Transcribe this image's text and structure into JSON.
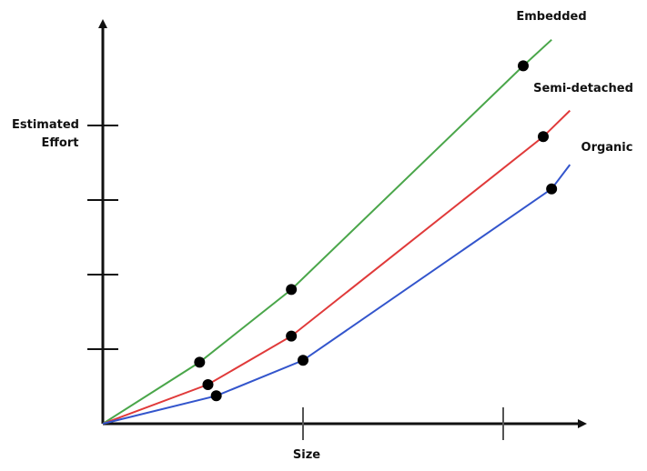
{
  "chart_data": {
    "type": "line",
    "xlabel": "Size",
    "ylabel": "Estimated Effort",
    "xlim": [
      0,
      24
    ],
    "ylim": [
      0,
      20
    ],
    "x_ticks": [
      12,
      24
    ],
    "y_ticks": [
      4,
      8,
      12,
      16
    ],
    "tick_labels_shown": false,
    "grid": false,
    "legend": "inline labels at line ends",
    "series": [
      {
        "name": "Embedded",
        "color": "#4aa64a",
        "points": [
          [
            0,
            0
          ],
          [
            5.8,
            3.3
          ],
          [
            11.3,
            7.2
          ],
          [
            25.2,
            19.2
          ]
        ],
        "line_end": [
          26.9,
          20.6
        ]
      },
      {
        "name": "Semi-detached",
        "color": "#e03a3a",
        "points": [
          [
            0,
            0
          ],
          [
            6.3,
            2.1
          ],
          [
            11.3,
            4.7
          ],
          [
            26.4,
            15.4
          ]
        ],
        "line_end": [
          28.0,
          16.8
        ]
      },
      {
        "name": "Organic",
        "color": "#3355cc",
        "points": [
          [
            0,
            0
          ],
          [
            6.8,
            1.5
          ],
          [
            12.0,
            3.4
          ],
          [
            26.9,
            12.6
          ]
        ],
        "line_end": [
          28.0,
          13.9
        ]
      }
    ]
  }
}
